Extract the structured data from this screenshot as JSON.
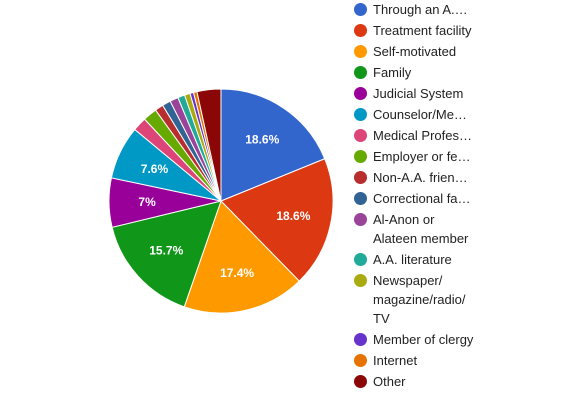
{
  "chart_data": {
    "type": "pie",
    "title": "",
    "slices": [
      {
        "label": "Through an A.…",
        "value": 18.6,
        "display": "18.6%",
        "color": "#3366cc"
      },
      {
        "label": "Treatment facility",
        "value": 18.6,
        "display": "18.6%",
        "color": "#dc3912"
      },
      {
        "label": "Self-motivated",
        "value": 17.4,
        "display": "17.4%",
        "color": "#ff9900"
      },
      {
        "label": "Family",
        "value": 15.7,
        "display": "15.7%",
        "color": "#109618"
      },
      {
        "label": "Judicial System",
        "value": 7.0,
        "display": "7%",
        "color": "#990099"
      },
      {
        "label": "Counselor/Me…",
        "value": 7.6,
        "display": "7.6%",
        "color": "#0099c6"
      },
      {
        "label": "Medical Profes…",
        "value": 2.0,
        "display": "",
        "color": "#dd4477"
      },
      {
        "label": "Employer or fe…",
        "value": 2.0,
        "display": "",
        "color": "#66aa00"
      },
      {
        "label": "Non-A.A. frien…",
        "value": 1.2,
        "display": "",
        "color": "#b82e2e"
      },
      {
        "label": "Correctional fa…",
        "value": 1.2,
        "display": "",
        "color": "#316395"
      },
      {
        "label": "Al-Anon or Alateen member",
        "value": 1.2,
        "display": "",
        "color": "#994499"
      },
      {
        "label": "A.A. literature",
        "value": 1.0,
        "display": "",
        "color": "#22aa99"
      },
      {
        "label": "Newspaper/ magazine/radio/ TV",
        "value": 0.8,
        "display": "",
        "color": "#aaaa11"
      },
      {
        "label": "Member of clergy",
        "value": 0.5,
        "display": "",
        "color": "#6633cc"
      },
      {
        "label": "Internet",
        "value": 0.5,
        "display": "",
        "color": "#e67300"
      },
      {
        "label": "Other",
        "value": 3.4,
        "display": "",
        "color": "#8b0707"
      }
    ],
    "legend_position": "right"
  }
}
